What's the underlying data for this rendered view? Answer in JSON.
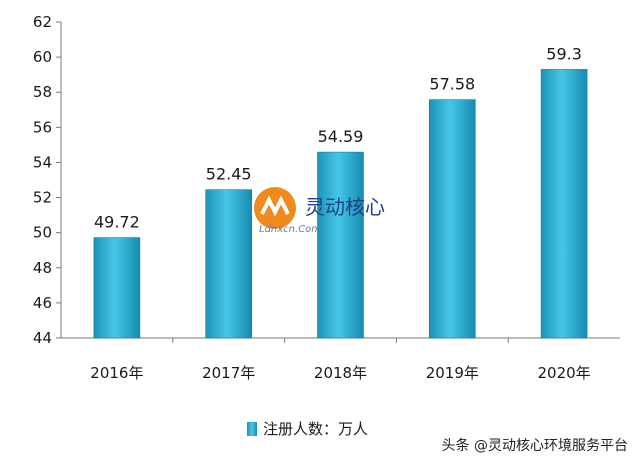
{
  "chart_data": {
    "type": "bar",
    "categories": [
      "2016年",
      "2017年",
      "2018年",
      "2019年",
      "2020年"
    ],
    "series": [
      {
        "name": "注册人数：万人",
        "values": [
          49.72,
          52.45,
          54.59,
          57.58,
          59.3
        ]
      }
    ],
    "data_labels": [
      "49.72",
      "52.45",
      "54.59",
      "57.58",
      "59.3"
    ],
    "ylim": [
      44,
      62
    ],
    "yticks": [
      "44",
      "46",
      "48",
      "50",
      "52",
      "54",
      "56",
      "58",
      "60",
      "62"
    ],
    "grid": false,
    "legend_position": "bottom-left",
    "bar_color": "#2fb3d6"
  },
  "watermark": {
    "brand": "灵动核心",
    "domain": "Ldnxcn.Com"
  },
  "credit": "头条 @灵动核心环境服务平台"
}
